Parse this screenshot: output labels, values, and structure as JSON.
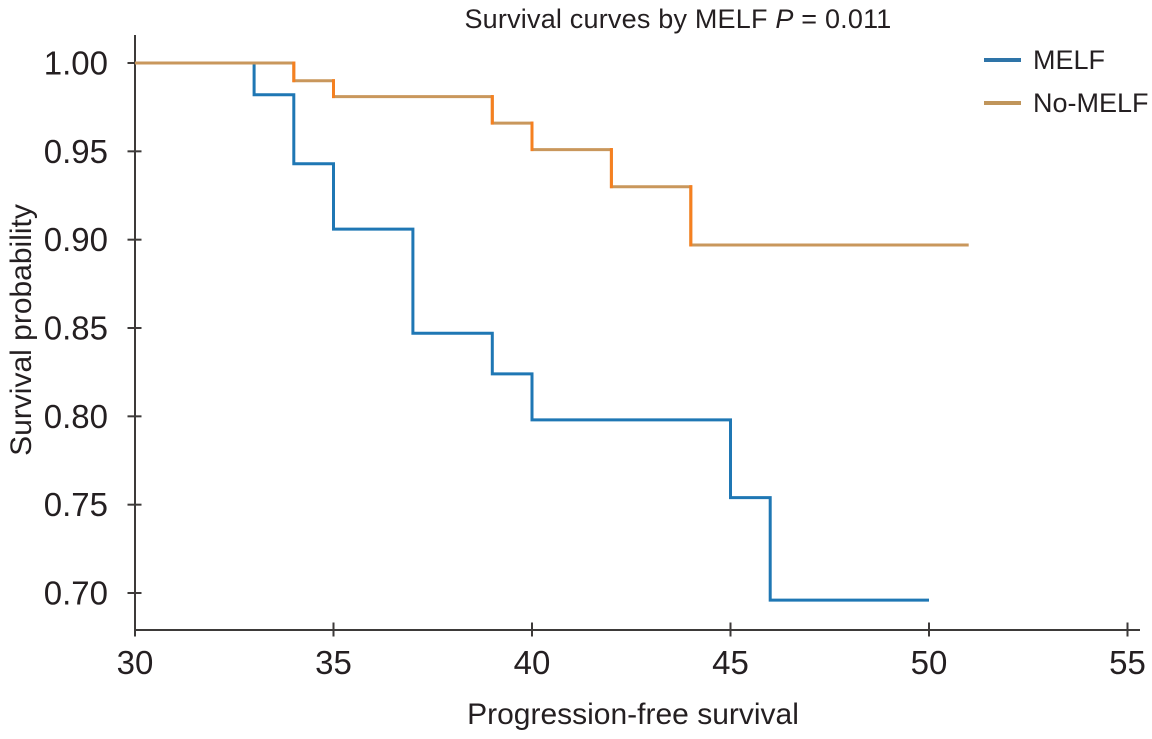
{
  "title": {
    "prefix": "Survival curves by MELF ",
    "p": "P",
    "suffix": " = 0.011"
  },
  "axes": {
    "x_label": "Progression-free survival",
    "y_label": "Survival probability"
  },
  "legend": [
    {
      "label": "MELF",
      "color": "#2e74a8"
    },
    {
      "label": "No-MELF",
      "color": "#c0955b"
    }
  ],
  "colors": {
    "axis": "#3d3a39",
    "text": "#241f21",
    "melf_line": "#1f77b4",
    "no_melf_line_horizontal": "#c9975c",
    "no_melf_line_vertical": "#f58020"
  },
  "chart_data": {
    "type": "line",
    "subtype": "kaplan-meier-step",
    "title": "Survival curves by MELF P = 0.011",
    "p_value": "P = 0.011",
    "xlabel": "Progression-free survival",
    "ylabel": "Survival probability",
    "xlim": [
      30,
      55
    ],
    "ylim": [
      0.68,
      1.01
    ],
    "x_ticks": [
      30,
      35,
      40,
      45,
      50,
      55
    ],
    "y_ticks": [
      1.0,
      0.95,
      0.9,
      0.85,
      0.8,
      0.75,
      0.7
    ],
    "grid": false,
    "legend_position": "top-right",
    "series": [
      {
        "name": "MELF",
        "color_h": "#1f77b4",
        "color_v": "#1f77b4",
        "end_x": 50,
        "steps": [
          [
            30,
            1.0
          ],
          [
            33,
            0.982
          ],
          [
            34,
            0.943
          ],
          [
            35,
            0.906
          ],
          [
            37,
            0.847
          ],
          [
            39,
            0.824
          ],
          [
            40,
            0.798
          ],
          [
            45,
            0.754
          ],
          [
            46,
            0.696
          ]
        ]
      },
      {
        "name": "No-MELF",
        "color_h": "#c9975c",
        "color_v": "#f58020",
        "end_x": 51,
        "steps": [
          [
            30,
            1.0
          ],
          [
            34,
            0.99
          ],
          [
            35,
            0.981
          ],
          [
            39,
            0.966
          ],
          [
            40,
            0.951
          ],
          [
            42,
            0.93
          ],
          [
            44,
            0.897
          ]
        ]
      }
    ]
  }
}
